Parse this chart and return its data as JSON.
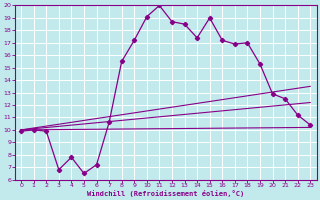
{
  "xlabel": "Windchill (Refroidissement éolien,°C)",
  "xlim": [
    -0.5,
    23.5
  ],
  "ylim": [
    6,
    20
  ],
  "xticks": [
    0,
    1,
    2,
    3,
    4,
    5,
    6,
    7,
    8,
    9,
    10,
    11,
    12,
    13,
    14,
    15,
    16,
    17,
    18,
    19,
    20,
    21,
    22,
    23
  ],
  "yticks": [
    6,
    7,
    8,
    9,
    10,
    11,
    12,
    13,
    14,
    15,
    16,
    17,
    18,
    19,
    20
  ],
  "bg_color": "#c2eaed",
  "line_color": "#880088",
  "grid_color": "#ffffff",
  "line1_x": [
    0,
    1,
    2,
    3,
    4,
    5,
    6,
    7,
    8,
    9,
    10,
    11,
    12,
    13,
    14,
    15,
    16,
    17,
    18,
    19,
    20,
    21,
    22,
    23
  ],
  "line1_y": [
    9.9,
    10.0,
    9.9,
    6.8,
    7.8,
    6.5,
    7.2,
    10.6,
    15.5,
    17.2,
    19.1,
    20.0,
    18.7,
    18.5,
    17.4,
    19.0,
    17.2,
    16.9,
    17.0,
    15.3,
    12.9,
    12.5,
    11.2,
    10.4
  ],
  "line2_x": [
    0,
    23
  ],
  "line2_y": [
    10.0,
    10.2
  ],
  "line3_x": [
    0,
    23
  ],
  "line3_y": [
    10.0,
    12.2
  ],
  "line4_x": [
    0,
    23
  ],
  "line4_y": [
    10.0,
    13.5
  ]
}
